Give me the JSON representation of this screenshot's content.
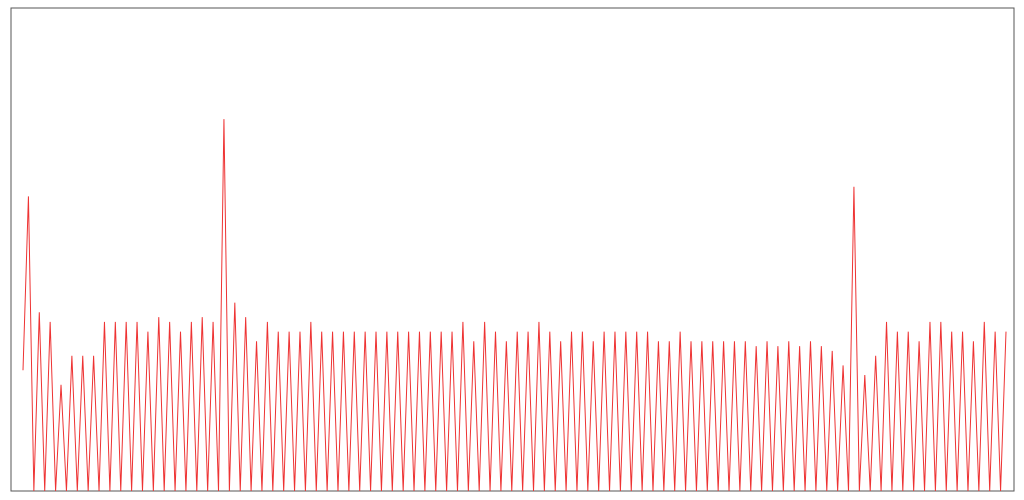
{
  "chart_data": {
    "type": "line",
    "title": "",
    "xlabel": "",
    "ylabel": "",
    "grid": false,
    "legend": "none",
    "color": "#ee3333",
    "ylim": [
      0,
      100
    ],
    "xlim": [
      0,
      209
    ],
    "series": [
      {
        "values": [
          25,
          61,
          0,
          37,
          0,
          35,
          0,
          22,
          0,
          28,
          0,
          28,
          0,
          28,
          0,
          35,
          0,
          35,
          0,
          35,
          0,
          35,
          0,
          33,
          0,
          36,
          0,
          35,
          0,
          33,
          0,
          35,
          0,
          36,
          0,
          35,
          0,
          77,
          0,
          39,
          0,
          36,
          0,
          31,
          0,
          35,
          0,
          33,
          0,
          33,
          0,
          33,
          0,
          35,
          0,
          33,
          0,
          33,
          0,
          33,
          0,
          33,
          0,
          33,
          0,
          33,
          0,
          33,
          0,
          33,
          0,
          33,
          0,
          33,
          0,
          33,
          0,
          33,
          0,
          33,
          0,
          35,
          0,
          31,
          0,
          35,
          0,
          33,
          0,
          31,
          0,
          33,
          0,
          33,
          0,
          35,
          0,
          33,
          0,
          31,
          0,
          33,
          0,
          33,
          0,
          31,
          0,
          33,
          0,
          33,
          0,
          33,
          0,
          33,
          0,
          33,
          0,
          31,
          0,
          31,
          0,
          33,
          0,
          31,
          0,
          31,
          0,
          31,
          0,
          31,
          0,
          31,
          0,
          31,
          0,
          30,
          0,
          31,
          0,
          30,
          0,
          31,
          0,
          30,
          0,
          31,
          0,
          30,
          0,
          29,
          0,
          26,
          0,
          63,
          0,
          24,
          0,
          28,
          0,
          35,
          0,
          33,
          0,
          33,
          0,
          31,
          0,
          35,
          0,
          35,
          0,
          33,
          0,
          33,
          0,
          31,
          0,
          35,
          0,
          33,
          0,
          33
        ]
      }
    ]
  }
}
